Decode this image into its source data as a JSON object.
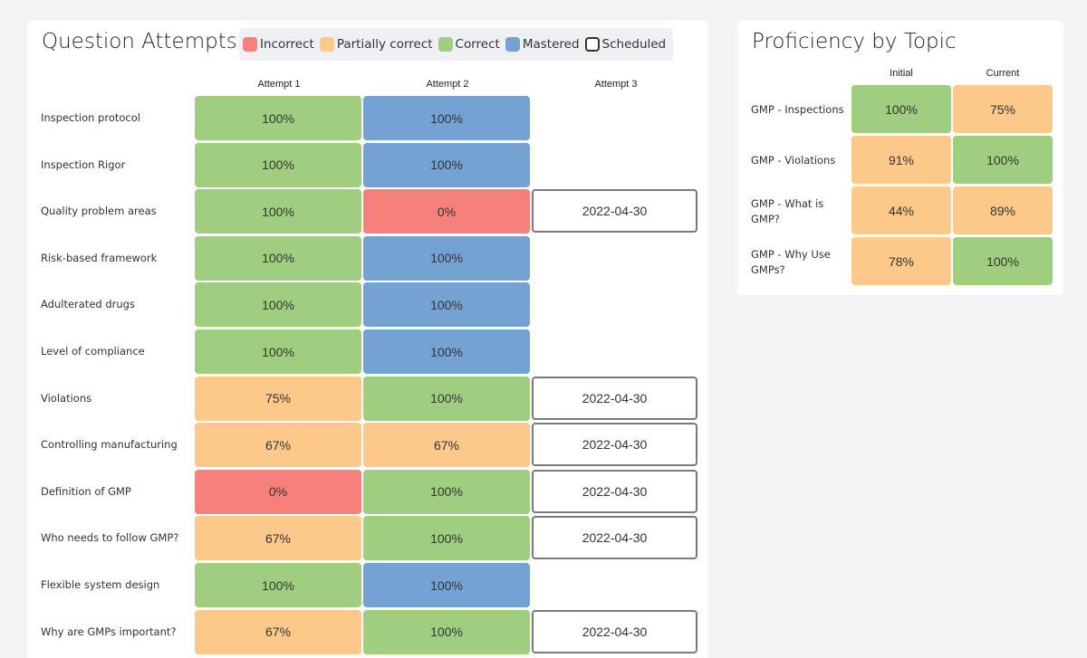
{
  "colors": {
    "incorrect": "#f7807b",
    "partial": "#fdc98b",
    "correct": "#a0ce80",
    "mastered": "#74a3d3",
    "scheduled_border": "#7a7a7a"
  },
  "attempts_panel": {
    "title": "Question Attempts",
    "legend": [
      {
        "label": "Incorrect",
        "status": "incorrect"
      },
      {
        "label": "Partially correct",
        "status": "partial"
      },
      {
        "label": "Correct",
        "status": "correct"
      },
      {
        "label": "Mastered",
        "status": "mastered"
      },
      {
        "label": "Scheduled",
        "status": "scheduled"
      }
    ],
    "columns": [
      "Attempt 1",
      "Attempt 2",
      "Attempt 3"
    ],
    "rows": [
      {
        "label": "Inspection protocol",
        "cells": [
          {
            "value": "100%",
            "status": "correct"
          },
          {
            "value": "100%",
            "status": "mastered"
          },
          null
        ]
      },
      {
        "label": "Inspection Rigor",
        "cells": [
          {
            "value": "100%",
            "status": "correct"
          },
          {
            "value": "100%",
            "status": "mastered"
          },
          null
        ]
      },
      {
        "label": "Quality problem areas",
        "cells": [
          {
            "value": "100%",
            "status": "correct"
          },
          {
            "value": "0%",
            "status": "incorrect"
          },
          {
            "value": "2022-04-30",
            "status": "scheduled"
          }
        ]
      },
      {
        "label": "Risk-based framework",
        "cells": [
          {
            "value": "100%",
            "status": "correct"
          },
          {
            "value": "100%",
            "status": "mastered"
          },
          null
        ]
      },
      {
        "label": "Adulterated drugs",
        "cells": [
          {
            "value": "100%",
            "status": "correct"
          },
          {
            "value": "100%",
            "status": "mastered"
          },
          null
        ]
      },
      {
        "label": "Level of compliance",
        "cells": [
          {
            "value": "100%",
            "status": "correct"
          },
          {
            "value": "100%",
            "status": "mastered"
          },
          null
        ]
      },
      {
        "label": "Violations",
        "cells": [
          {
            "value": "75%",
            "status": "partial"
          },
          {
            "value": "100%",
            "status": "correct"
          },
          {
            "value": "2022-04-30",
            "status": "scheduled"
          }
        ]
      },
      {
        "label": "Controlling manufacturing",
        "cells": [
          {
            "value": "67%",
            "status": "partial"
          },
          {
            "value": "67%",
            "status": "partial"
          },
          {
            "value": "2022-04-30",
            "status": "scheduled"
          }
        ]
      },
      {
        "label": "Definition of GMP",
        "cells": [
          {
            "value": "0%",
            "status": "incorrect"
          },
          {
            "value": "100%",
            "status": "correct"
          },
          {
            "value": "2022-04-30",
            "status": "scheduled"
          }
        ]
      },
      {
        "label": "Who needs to follow GMP?",
        "cells": [
          {
            "value": "67%",
            "status": "partial"
          },
          {
            "value": "100%",
            "status": "correct"
          },
          {
            "value": "2022-04-30",
            "status": "scheduled"
          }
        ]
      },
      {
        "label": "Flexible system design",
        "cells": [
          {
            "value": "100%",
            "status": "correct"
          },
          {
            "value": "100%",
            "status": "mastered"
          },
          null
        ]
      },
      {
        "label": "Why are GMPs important?",
        "cells": [
          {
            "value": "67%",
            "status": "partial"
          },
          {
            "value": "100%",
            "status": "correct"
          },
          {
            "value": "2022-04-30",
            "status": "scheduled"
          }
        ]
      }
    ]
  },
  "proficiency_panel": {
    "title": "Proficiency by Topic",
    "columns": [
      "Initial",
      "Current"
    ],
    "rows": [
      {
        "label": "GMP - Inspections",
        "cells": [
          {
            "value": "100%",
            "status": "correct"
          },
          {
            "value": "75%",
            "status": "partial"
          }
        ]
      },
      {
        "label": "GMP - Violations",
        "cells": [
          {
            "value": "91%",
            "status": "partial"
          },
          {
            "value": "100%",
            "status": "correct"
          }
        ]
      },
      {
        "label": "GMP - What is GMP?",
        "cells": [
          {
            "value": "44%",
            "status": "partial"
          },
          {
            "value": "89%",
            "status": "partial"
          }
        ]
      },
      {
        "label": "GMP - Why Use GMPs?",
        "cells": [
          {
            "value": "78%",
            "status": "partial"
          },
          {
            "value": "100%",
            "status": "correct"
          }
        ]
      }
    ]
  }
}
